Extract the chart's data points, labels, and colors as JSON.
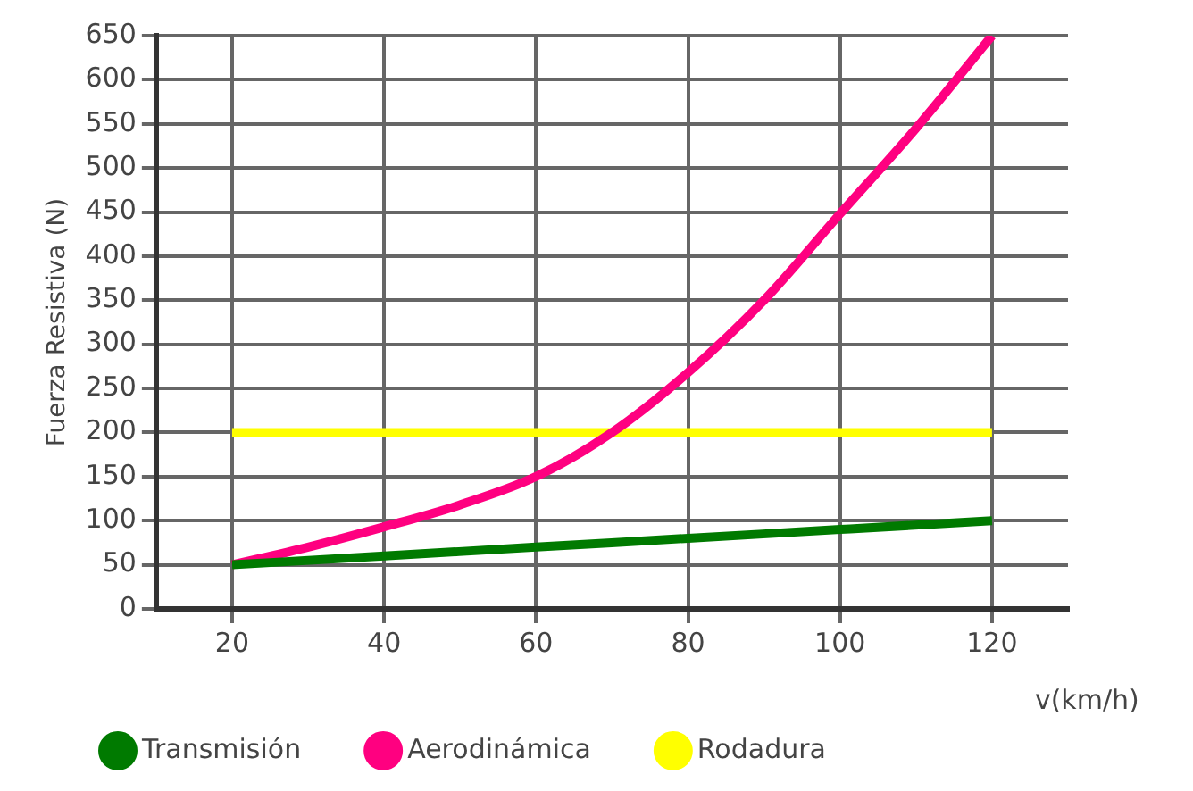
{
  "chart_data": {
    "type": "line",
    "ylabel": "Fuerza Resistiva (N)",
    "xlabel": "v(km/h)",
    "x": [
      20,
      30,
      40,
      50,
      60,
      70,
      80,
      90,
      100,
      110,
      120
    ],
    "series": [
      {
        "name": "Transmisión",
        "color": "#007a00",
        "x": [
          20,
          40,
          60,
          80,
          100,
          120
        ],
        "values": [
          50,
          60,
          70,
          80,
          90,
          100
        ]
      },
      {
        "name": "Aerodinámica",
        "color": "#ff0080",
        "values": [
          50,
          70,
          93,
          118,
          150,
          200,
          268,
          350,
          448,
          545,
          650
        ]
      },
      {
        "name": "Rodadura",
        "color": "#ffff00",
        "x": [
          20,
          120
        ],
        "values": [
          200,
          200
        ]
      }
    ],
    "xlim": [
      10,
      130
    ],
    "xticks": [
      20,
      40,
      60,
      80,
      100,
      120
    ],
    "ylim": [
      0,
      650
    ],
    "yticks": [
      0,
      50,
      100,
      150,
      200,
      250,
      300,
      350,
      400,
      450,
      500,
      550,
      600,
      650
    ],
    "grid": true,
    "legend": "bottom",
    "marker": "none",
    "line_style": "solid"
  }
}
